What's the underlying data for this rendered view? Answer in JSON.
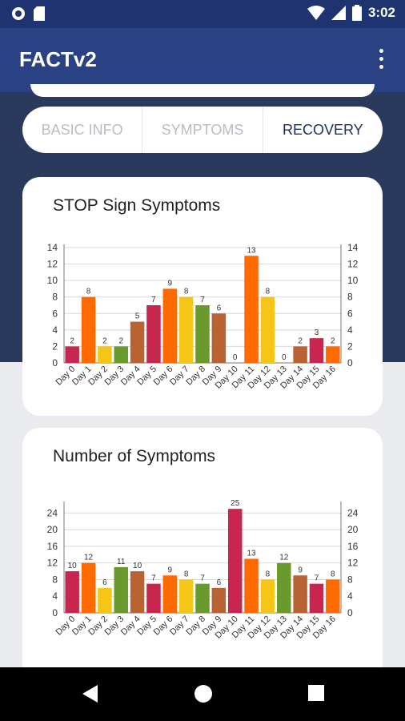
{
  "status_bar": {
    "time": "3:02",
    "icons": [
      "circle-status-icon",
      "sd-card-icon",
      "wifi-icon",
      "signal-icon",
      "battery-icon"
    ]
  },
  "app_bar": {
    "title": "FACTv2",
    "menu_icon": "more-vert-icon"
  },
  "tabs": [
    {
      "label": "BASIC INFO",
      "active": false
    },
    {
      "label": "SYMPTOMS",
      "active": false
    },
    {
      "label": "RECOVERY",
      "active": true
    }
  ],
  "colors": {
    "header": "#2a4184",
    "status": "#1f3370",
    "crimson": "#c8254f",
    "orange": "#ff6a00",
    "yellow": "#f5c518",
    "green": "#6a9a2e",
    "brown": "#b96334",
    "grid": "#d5d8dd"
  },
  "chart_data": [
    {
      "type": "bar",
      "title": "STOP Sign Symptoms",
      "categories": [
        "Day 0",
        "Day 1",
        "Day 2",
        "Day 3",
        "Day 4",
        "Day 5",
        "Day 6",
        "Day 7",
        "Day 8",
        "Day 9",
        "Day 10",
        "Day 11",
        "Day 12",
        "Day 13",
        "Day 14",
        "Day 15",
        "Day 16"
      ],
      "values": [
        2,
        8,
        2,
        2,
        5,
        7,
        9,
        8,
        7,
        6,
        0,
        13,
        8,
        0,
        2,
        3,
        2
      ],
      "bar_colors": [
        "crimson",
        "orange",
        "yellow",
        "green",
        "brown",
        "crimson",
        "orange",
        "yellow",
        "green",
        "brown",
        "crimson",
        "orange",
        "yellow",
        "green",
        "brown",
        "crimson",
        "orange"
      ],
      "ylim": [
        0,
        14
      ],
      "yticks": [
        0,
        2,
        4,
        6,
        8,
        10,
        12,
        14
      ],
      "dual_axis": true,
      "grid": true
    },
    {
      "type": "bar",
      "title": "Number of Symptoms",
      "categories": [
        "Day 0",
        "Day 1",
        "Day 2",
        "Day 3",
        "Day 4",
        "Day 5",
        "Day 6",
        "Day 7",
        "Day 8",
        "Day 9",
        "Day 10",
        "Day 11",
        "Day 12",
        "Day 13",
        "Day 14",
        "Day 15",
        "Day 16"
      ],
      "values": [
        10,
        12,
        6,
        11,
        10,
        7,
        9,
        8,
        7,
        6,
        25,
        13,
        8,
        12,
        9,
        7,
        8
      ],
      "bar_colors": [
        "crimson",
        "orange",
        "yellow",
        "green",
        "brown",
        "crimson",
        "orange",
        "yellow",
        "green",
        "brown",
        "crimson",
        "orange",
        "yellow",
        "green",
        "brown",
        "crimson",
        "orange"
      ],
      "ylim": [
        0,
        26
      ],
      "yticks": [
        0,
        4,
        8,
        12,
        16,
        20,
        24
      ],
      "dual_axis": true,
      "grid": true
    }
  ],
  "nav_bar": {
    "icons": [
      "back-icon",
      "home-icon",
      "recents-icon"
    ]
  }
}
